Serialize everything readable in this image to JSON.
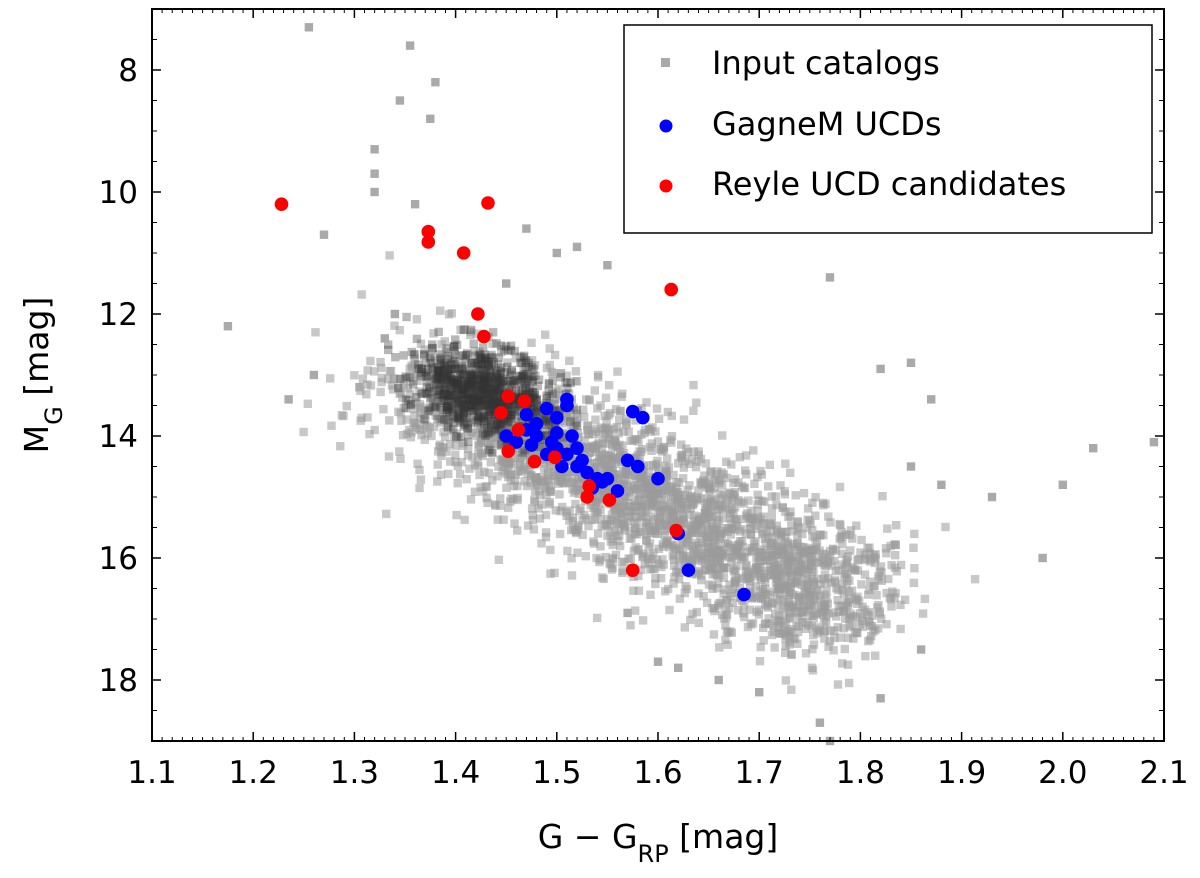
{
  "chart_data": {
    "type": "scatter",
    "title": "",
    "xlabel": {
      "main": "G − G",
      "sub": "RP",
      "unit": " [mag]"
    },
    "ylabel": {
      "main": "M",
      "sub": "G",
      "unit": " [mag]"
    },
    "xlim": [
      1.1,
      2.1
    ],
    "ylim": [
      19.0,
      7.0
    ],
    "y_inverted": true,
    "xticks": [
      "1.1",
      "1.2",
      "1.3",
      "1.4",
      "1.5",
      "1.6",
      "1.7",
      "1.8",
      "1.9",
      "2.0",
      "2.1"
    ],
    "xtick_values": [
      1.1,
      1.2,
      1.3,
      1.4,
      1.5,
      1.6,
      1.7,
      1.8,
      1.9,
      2.0,
      2.1
    ],
    "yticks": [
      "8",
      "10",
      "12",
      "14",
      "16",
      "18"
    ],
    "ytick_values": [
      8,
      10,
      12,
      14,
      16,
      18
    ],
    "grid": false,
    "legend_placement": "top-right",
    "series": [
      {
        "name": "Input catalogs",
        "color": "#aaaaaa",
        "marker": "square",
        "density": {
          "description_of_distribution": "dense band",
          "core_center": [
            1.43,
            13.3
          ],
          "trend_x_range": [
            1.36,
            1.78
          ],
          "trend_y_range": [
            13.0,
            16.8
          ],
          "count": 2600
        },
        "outliers": [
          [
            1.255,
            7.3
          ],
          [
            1.355,
            7.6
          ],
          [
            1.38,
            8.2
          ],
          [
            1.345,
            8.5
          ],
          [
            1.375,
            8.8
          ],
          [
            1.32,
            9.3
          ],
          [
            1.32,
            9.7
          ],
          [
            1.32,
            10.0
          ],
          [
            1.36,
            10.2
          ],
          [
            1.27,
            10.7
          ],
          [
            1.175,
            12.2
          ],
          [
            1.26,
            13.0
          ],
          [
            1.235,
            13.4
          ],
          [
            1.305,
            13.2
          ],
          [
            1.34,
            12.0
          ],
          [
            1.33,
            12.4
          ],
          [
            1.77,
            11.4
          ],
          [
            1.82,
            12.9
          ],
          [
            1.85,
            12.8
          ],
          [
            1.87,
            13.4
          ],
          [
            1.85,
            14.5
          ],
          [
            1.88,
            14.8
          ],
          [
            1.93,
            15.0
          ],
          [
            1.98,
            16.0
          ],
          [
            2.0,
            14.8
          ],
          [
            2.03,
            14.2
          ],
          [
            2.09,
            14.1
          ],
          [
            1.86,
            17.5
          ],
          [
            1.82,
            18.3
          ],
          [
            1.76,
            18.7
          ],
          [
            1.77,
            19.0
          ],
          [
            1.7,
            18.2
          ],
          [
            1.62,
            17.8
          ],
          [
            1.66,
            18.0
          ],
          [
            1.6,
            17.7
          ],
          [
            1.57,
            16.9
          ],
          [
            1.47,
            10.6
          ],
          [
            1.5,
            11.0
          ],
          [
            1.55,
            11.2
          ],
          [
            1.52,
            10.9
          ],
          [
            1.45,
            11.5
          ]
        ]
      },
      {
        "name": "GagneM UCDs",
        "color": "#0000ff",
        "marker": "circle",
        "points": [
          [
            1.45,
            14.0
          ],
          [
            1.46,
            14.1
          ],
          [
            1.47,
            13.9
          ],
          [
            1.475,
            14.15
          ],
          [
            1.48,
            13.8
          ],
          [
            1.48,
            14.0
          ],
          [
            1.49,
            13.55
          ],
          [
            1.49,
            14.3
          ],
          [
            1.495,
            14.1
          ],
          [
            1.5,
            14.2
          ],
          [
            1.5,
            13.7
          ],
          [
            1.505,
            14.5
          ],
          [
            1.51,
            13.4
          ],
          [
            1.51,
            13.5
          ],
          [
            1.51,
            14.3
          ],
          [
            1.515,
            14.0
          ],
          [
            1.52,
            14.2
          ],
          [
            1.52,
            14.5
          ],
          [
            1.53,
            14.6
          ],
          [
            1.535,
            14.85
          ],
          [
            1.54,
            14.7
          ],
          [
            1.55,
            14.7
          ],
          [
            1.56,
            14.9
          ],
          [
            1.57,
            14.4
          ],
          [
            1.575,
            13.6
          ],
          [
            1.58,
            14.5
          ],
          [
            1.585,
            13.7
          ],
          [
            1.6,
            14.7
          ],
          [
            1.62,
            15.6
          ],
          [
            1.63,
            16.2
          ],
          [
            1.685,
            16.6
          ],
          [
            1.47,
            13.65
          ],
          [
            1.5,
            13.95
          ],
          [
            1.525,
            14.4
          ],
          [
            1.545,
            14.75
          ]
        ]
      },
      {
        "name": "Reyle UCD candidates",
        "color": "#ff0000",
        "marker": "circle",
        "points": [
          [
            1.228,
            10.2
          ],
          [
            1.373,
            10.65
          ],
          [
            1.373,
            10.82
          ],
          [
            1.408,
            11.0
          ],
          [
            1.432,
            10.18
          ],
          [
            1.613,
            11.6
          ],
          [
            1.422,
            12.0
          ],
          [
            1.428,
            12.37
          ],
          [
            1.452,
            13.35
          ],
          [
            1.468,
            13.43
          ],
          [
            1.445,
            13.62
          ],
          [
            1.462,
            13.9
          ],
          [
            1.452,
            14.25
          ],
          [
            1.478,
            14.42
          ],
          [
            1.498,
            14.35
          ],
          [
            1.532,
            14.82
          ],
          [
            1.53,
            15.0
          ],
          [
            1.552,
            15.05
          ],
          [
            1.618,
            15.55
          ],
          [
            1.575,
            16.2
          ]
        ]
      }
    ]
  }
}
